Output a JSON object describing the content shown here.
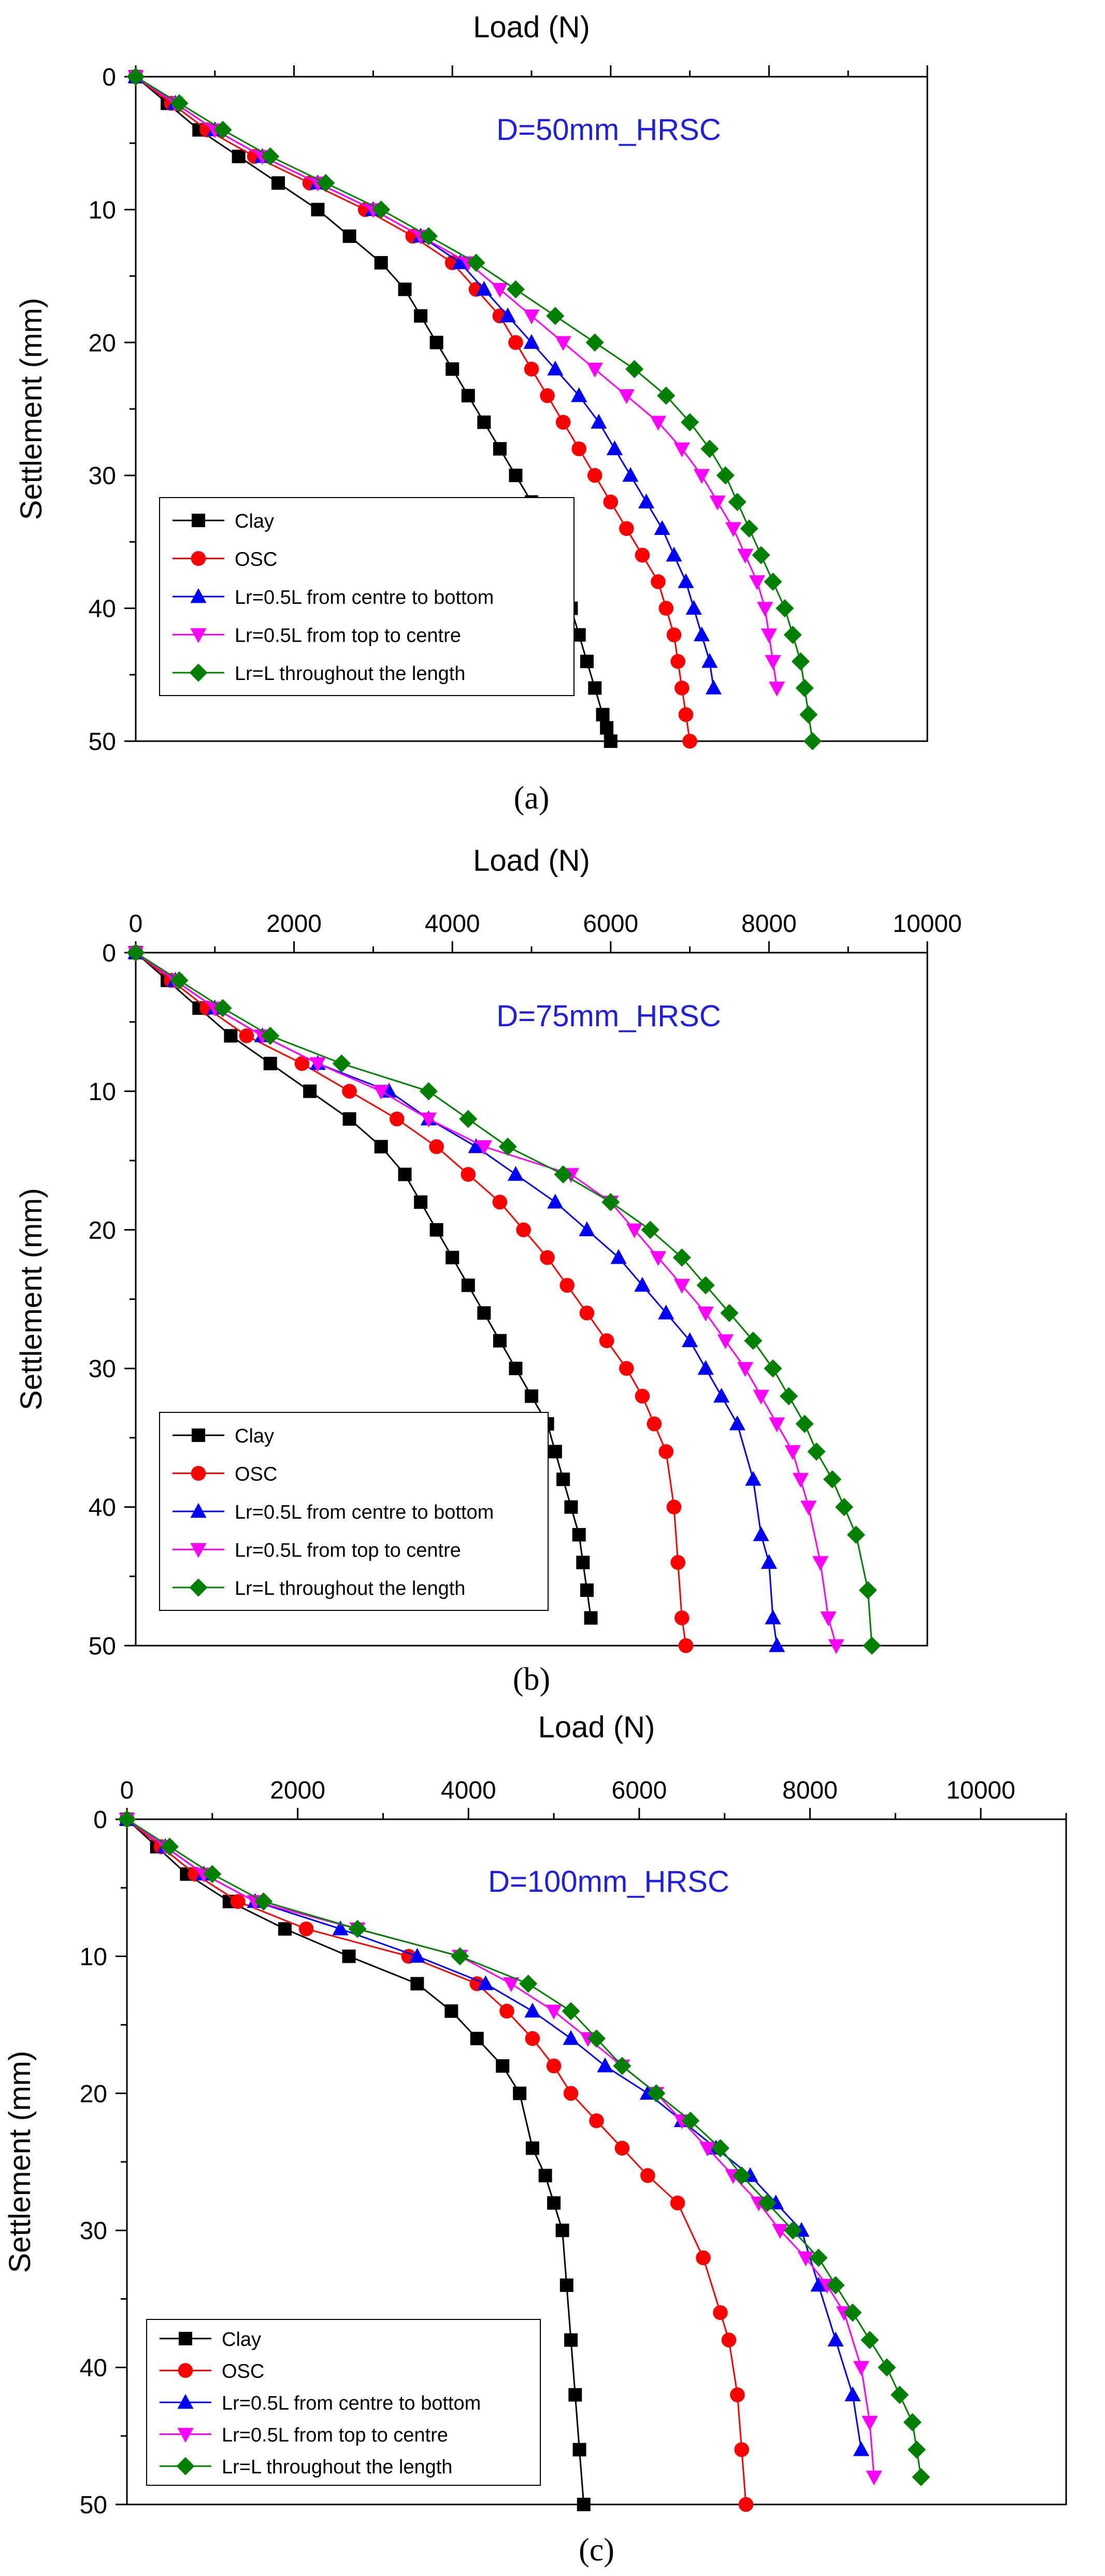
{
  "colors": {
    "axis": "#000000",
    "annotation": "#1f1fe0",
    "clay": "#000000",
    "osc": "#ff0000",
    "centre_bottom": "#0000ff",
    "top_centre": "#ff00ff",
    "throughout": "#008000"
  },
  "chart_data": [
    {
      "type": "line",
      "panel_label": "(a)",
      "annotation": "D=50mm_HRSC",
      "xlabel": "Load (N)",
      "ylabel": "Settlement (mm)",
      "xlim": [
        0,
        10000
      ],
      "ylim": [
        0,
        50
      ],
      "y_inverted": true,
      "x_ticks": [],
      "y_ticks": [
        "0",
        "10",
        "20",
        "30",
        "40",
        "50"
      ],
      "legend_position": "bottom-left",
      "series": [
        {
          "name": "Clay",
          "marker": "square",
          "color_key": "clay",
          "x": [
            0,
            400,
            800,
            1300,
            1800,
            2300,
            2700,
            3100,
            3400,
            3600,
            3800,
            4000,
            4200,
            4400,
            4600,
            4800,
            5000,
            5200,
            5300,
            5400,
            5500,
            5600,
            5700,
            5800,
            5900,
            5950,
            6000
          ],
          "y": [
            0,
            2,
            4,
            6,
            8,
            10,
            12,
            14,
            16,
            18,
            20,
            22,
            24,
            26,
            28,
            30,
            32,
            34,
            36,
            38,
            40,
            42,
            44,
            46,
            48,
            49,
            50
          ]
        },
        {
          "name": "OSC",
          "marker": "circle",
          "color_key": "osc",
          "x": [
            0,
            450,
            900,
            1500,
            2200,
            2900,
            3500,
            4000,
            4300,
            4600,
            4800,
            5000,
            5200,
            5400,
            5600,
            5800,
            6000,
            6200,
            6400,
            6600,
            6700,
            6800,
            6850,
            6900,
            6950,
            7000
          ],
          "y": [
            0,
            2,
            4,
            6,
            8,
            10,
            12,
            14,
            16,
            18,
            20,
            22,
            24,
            26,
            28,
            30,
            32,
            34,
            36,
            38,
            40,
            42,
            44,
            46,
            48,
            50
          ]
        },
        {
          "name": "Lr=0.5L from centre to bottom",
          "marker": "triangle-up",
          "color_key": "centre_bottom",
          "x": [
            0,
            500,
            1000,
            1600,
            2300,
            3000,
            3600,
            4100,
            4400,
            4700,
            5000,
            5300,
            5600,
            5850,
            6050,
            6250,
            6450,
            6650,
            6800,
            6950,
            7050,
            7150,
            7250,
            7300
          ],
          "y": [
            0,
            2,
            4,
            6,
            8,
            10,
            12,
            14,
            16,
            18,
            20,
            22,
            24,
            26,
            28,
            30,
            32,
            34,
            36,
            38,
            40,
            42,
            44,
            46
          ]
        },
        {
          "name": "Lr=0.5L from top to centre",
          "marker": "triangle-down",
          "color_key": "top_centre",
          "x": [
            0,
            500,
            1000,
            1600,
            2300,
            3000,
            3600,
            4200,
            4600,
            5000,
            5400,
            5800,
            6200,
            6600,
            6900,
            7150,
            7350,
            7550,
            7700,
            7850,
            7950,
            8000,
            8050,
            8100
          ],
          "y": [
            0,
            2,
            4,
            6,
            8,
            10,
            12,
            14,
            16,
            18,
            20,
            22,
            24,
            26,
            28,
            30,
            32,
            34,
            36,
            38,
            40,
            42,
            44,
            46
          ]
        },
        {
          "name": "Lr=L throughout the length",
          "marker": "diamond",
          "color_key": "throughout",
          "x": [
            0,
            550,
            1100,
            1700,
            2400,
            3100,
            3700,
            4300,
            4800,
            5300,
            5800,
            6300,
            6700,
            7000,
            7250,
            7450,
            7600,
            7750,
            7900,
            8050,
            8200,
            8300,
            8400,
            8450,
            8500,
            8550
          ],
          "y": [
            0,
            2,
            4,
            6,
            8,
            10,
            12,
            14,
            16,
            18,
            20,
            22,
            24,
            26,
            28,
            30,
            32,
            34,
            36,
            38,
            40,
            42,
            44,
            46,
            48,
            50
          ]
        }
      ]
    },
    {
      "type": "line",
      "panel_label": "(b)",
      "annotation": "D=75mm_HRSC",
      "xlabel": "Load (N)",
      "ylabel": "Settlement (mm)",
      "xlim": [
        0,
        10000
      ],
      "ylim": [
        0,
        50
      ],
      "y_inverted": true,
      "x_ticks": [
        "0",
        "2000",
        "4000",
        "6000",
        "8000",
        "10000"
      ],
      "y_ticks": [
        "0",
        "10",
        "20",
        "30",
        "40",
        "50"
      ],
      "legend_position": "bottom-left",
      "series": [
        {
          "name": "Clay",
          "marker": "square",
          "color_key": "clay",
          "x": [
            0,
            400,
            800,
            1200,
            1700,
            2200,
            2700,
            3100,
            3400,
            3600,
            3800,
            4000,
            4200,
            4400,
            4600,
            4800,
            5000,
            5200,
            5300,
            5400,
            5500,
            5600,
            5650,
            5700,
            5750
          ],
          "y": [
            0,
            2,
            4,
            6,
            8,
            10,
            12,
            14,
            16,
            18,
            20,
            22,
            24,
            26,
            28,
            30,
            32,
            34,
            36,
            38,
            40,
            42,
            44,
            46,
            48
          ]
        },
        {
          "name": "OSC",
          "marker": "circle",
          "color_key": "osc",
          "x": [
            0,
            450,
            900,
            1400,
            2100,
            2700,
            3300,
            3800,
            4200,
            4600,
            4900,
            5200,
            5450,
            5700,
            5950,
            6200,
            6400,
            6550,
            6700,
            6800,
            6850,
            6900,
            6950
          ],
          "y": [
            0,
            2,
            4,
            6,
            8,
            10,
            12,
            14,
            16,
            18,
            20,
            22,
            24,
            26,
            28,
            30,
            32,
            34,
            36,
            40,
            44,
            48,
            50
          ]
        },
        {
          "name": "Lr=0.5L from centre to bottom",
          "marker": "triangle-up",
          "color_key": "centre_bottom",
          "x": [
            0,
            500,
            1000,
            1600,
            2300,
            3200,
            3700,
            4300,
            4800,
            5300,
            5700,
            6100,
            6400,
            6700,
            7000,
            7200,
            7400,
            7600,
            7800,
            7900,
            8000,
            8050,
            8100
          ],
          "y": [
            0,
            2,
            4,
            6,
            8,
            10,
            12,
            14,
            16,
            18,
            20,
            22,
            24,
            26,
            28,
            30,
            32,
            34,
            38,
            42,
            44,
            48,
            50
          ]
        },
        {
          "name": "Lr=0.5L from top to centre",
          "marker": "triangle-down",
          "color_key": "top_centre",
          "x": [
            0,
            500,
            1000,
            1600,
            2300,
            3100,
            3700,
            4400,
            5500,
            6000,
            6300,
            6600,
            6900,
            7200,
            7450,
            7700,
            7900,
            8100,
            8300,
            8400,
            8500,
            8650,
            8750,
            8850
          ],
          "y": [
            0,
            2,
            4,
            6,
            8,
            10,
            12,
            14,
            16,
            18,
            20,
            22,
            24,
            26,
            28,
            30,
            32,
            34,
            36,
            38,
            40,
            44,
            48,
            50
          ]
        },
        {
          "name": "Lr=L throughout the length",
          "marker": "diamond",
          "color_key": "throughout",
          "x": [
            0,
            550,
            1100,
            1700,
            2600,
            3700,
            4200,
            4700,
            5400,
            6000,
            6500,
            6900,
            7200,
            7500,
            7800,
            8050,
            8250,
            8450,
            8600,
            8800,
            8950,
            9100,
            9250,
            9300
          ],
          "y": [
            0,
            2,
            4,
            6,
            8,
            10,
            12,
            14,
            16,
            18,
            20,
            22,
            24,
            26,
            28,
            30,
            32,
            34,
            36,
            38,
            40,
            42,
            46,
            50
          ]
        }
      ]
    },
    {
      "type": "line",
      "panel_label": "(c)",
      "annotation": "D=100mm_HRSC",
      "xlabel": "Load (N)",
      "ylabel": "Settlement (mm)",
      "xlim": [
        0,
        11000
      ],
      "ylim": [
        0,
        50
      ],
      "y_inverted": true,
      "x_ticks": [
        "0",
        "2000",
        "4000",
        "6000",
        "8000",
        "10000"
      ],
      "y_ticks": [
        "0",
        "10",
        "20",
        "30",
        "40",
        "50"
      ],
      "legend_position": "bottom-left",
      "series": [
        {
          "name": "Clay",
          "marker": "square",
          "color_key": "clay",
          "x": [
            0,
            350,
            700,
            1200,
            1850,
            2600,
            3400,
            3800,
            4100,
            4400,
            4600,
            4750,
            4900,
            5000,
            5100,
            5150,
            5200,
            5250,
            5300,
            5350
          ],
          "y": [
            0,
            2,
            4,
            6,
            8,
            10,
            12,
            14,
            16,
            18,
            20,
            24,
            26,
            28,
            30,
            34,
            38,
            42,
            46,
            50
          ]
        },
        {
          "name": "OSC",
          "marker": "circle",
          "color_key": "osc",
          "x": [
            0,
            400,
            800,
            1300,
            2100,
            3300,
            4100,
            4450,
            4750,
            5000,
            5200,
            5500,
            5800,
            6100,
            6450,
            6750,
            6950,
            7050,
            7150,
            7200,
            7250
          ],
          "y": [
            0,
            2,
            4,
            6,
            8,
            10,
            12,
            14,
            16,
            18,
            20,
            22,
            24,
            26,
            28,
            32,
            36,
            38,
            42,
            46,
            50
          ]
        },
        {
          "name": "Lr=0.5L from centre to bottom",
          "marker": "triangle-up",
          "color_key": "centre_bottom",
          "x": [
            0,
            450,
            900,
            1500,
            2500,
            3400,
            4200,
            4750,
            5200,
            5600,
            6100,
            6500,
            6900,
            7300,
            7600,
            7900,
            8100,
            8300,
            8500,
            8600
          ],
          "y": [
            0,
            2,
            4,
            6,
            8,
            10,
            12,
            14,
            16,
            18,
            20,
            22,
            24,
            26,
            28,
            30,
            34,
            38,
            42,
            46
          ]
        },
        {
          "name": "Lr=0.5L from top to centre",
          "marker": "triangle-down",
          "color_key": "top_centre",
          "x": [
            0,
            450,
            900,
            1500,
            2700,
            3900,
            4500,
            5000,
            5400,
            5800,
            6200,
            6500,
            6800,
            7100,
            7400,
            7650,
            7950,
            8200,
            8400,
            8600,
            8700,
            8750
          ],
          "y": [
            0,
            2,
            4,
            6,
            8,
            10,
            12,
            14,
            16,
            18,
            20,
            22,
            24,
            26,
            28,
            30,
            32,
            34,
            36,
            40,
            44,
            48
          ]
        },
        {
          "name": "Lr=L throughout the length",
          "marker": "diamond",
          "color_key": "throughout",
          "x": [
            0,
            500,
            1000,
            1600,
            2700,
            3900,
            4700,
            5200,
            5500,
            5800,
            6200,
            6600,
            6950,
            7200,
            7500,
            7800,
            8100,
            8300,
            8500,
            8700,
            8900,
            9050,
            9200,
            9250,
            9300
          ],
          "y": [
            0,
            2,
            4,
            6,
            8,
            10,
            12,
            14,
            16,
            18,
            20,
            22,
            24,
            26,
            28,
            30,
            32,
            34,
            36,
            38,
            40,
            42,
            44,
            46,
            48
          ]
        }
      ]
    }
  ]
}
